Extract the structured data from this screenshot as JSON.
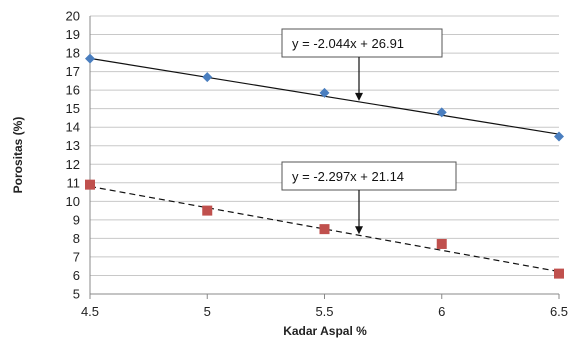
{
  "chart_data": {
    "type": "scatter",
    "xlabel": "Kadar Aspal %",
    "ylabel": "Porositas (%)",
    "xlim": [
      4.5,
      6.5
    ],
    "ylim": [
      5,
      20
    ],
    "x_ticks": [
      "4.5",
      "5",
      "5.5",
      "6",
      "6.5"
    ],
    "y_ticks": [
      "5",
      "6",
      "7",
      "8",
      "9",
      "10",
      "11",
      "12",
      "13",
      "14",
      "15",
      "16",
      "17",
      "18",
      "19",
      "20"
    ],
    "grid": "horizontal",
    "series": [
      {
        "marker": "diamond",
        "color": "#4a7ebf",
        "x": [
          4.5,
          5,
          5.5,
          6,
          6.5
        ],
        "y": [
          17.7,
          16.7,
          15.85,
          14.8,
          13.5
        ],
        "trendline": {
          "style": "solid",
          "slope": -2.044,
          "intercept": 26.91,
          "equation": "y = -2.044x + 26.91"
        }
      },
      {
        "marker": "square",
        "color": "#c0504d",
        "x": [
          4.5,
          5,
          5.5,
          6,
          6.5
        ],
        "y": [
          10.9,
          9.5,
          8.5,
          7.7,
          6.1
        ],
        "trendline": {
          "style": "dashed",
          "slope": -2.297,
          "intercept": 21.14,
          "equation": "y = -2.297x + 21.14"
        }
      }
    ]
  }
}
